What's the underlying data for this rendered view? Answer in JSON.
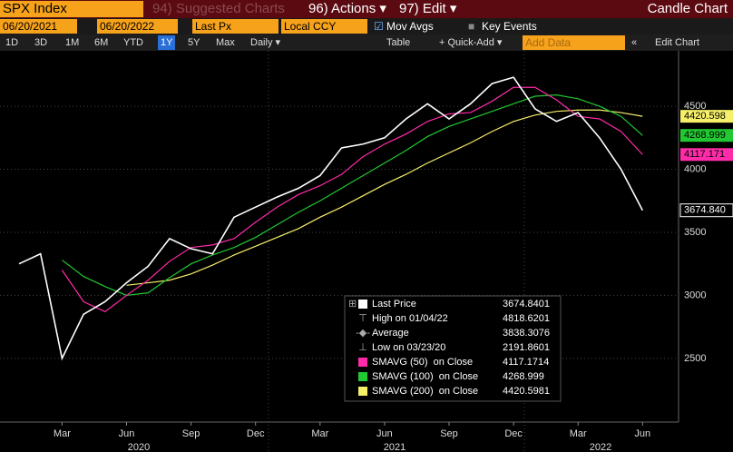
{
  "toolbar": {
    "security": "SPX Index",
    "suggested": "94) Suggested Charts",
    "actions": "96) Actions ▾",
    "edit": "97) Edit ▾",
    "chart_type": "Candle Chart"
  },
  "settings": {
    "start": "06/20/2021",
    "end": "06/20/2022",
    "field": "Last Px",
    "currency": "Local CCY",
    "mov_avgs": "Mov Avgs",
    "key_events": "Key Events"
  },
  "periods": [
    "1D",
    "3D",
    "1M",
    "6M",
    "YTD",
    "1Y",
    "5Y",
    "Max"
  ],
  "active_period": "1Y",
  "tools": {
    "frequency": "Daily ▾",
    "table": "Table",
    "quick_add": "+ Quick-Add ▾",
    "add_data": "Add Data",
    "edit_chart": "Edit Chart"
  },
  "chart_data": {
    "type": "line",
    "categories": [
      null,
      null,
      "Mar",
      null,
      null,
      "Jun",
      null,
      null,
      "Sep",
      null,
      null,
      "Dec",
      null,
      null,
      "Mar",
      null,
      null,
      "Jun",
      null,
      null,
      "Sep",
      null,
      null,
      "Dec",
      null,
      null,
      "Mar",
      null,
      null,
      "Jun"
    ],
    "years": [
      "2020",
      "2021",
      "2022"
    ],
    "series": [
      {
        "name": "Last Price",
        "color": "#ffffff",
        "legend_value": "3674.8401",
        "last_label": "3674.840",
        "values": [
          3250,
          3330,
          2500,
          2850,
          2950,
          3100,
          3230,
          3450,
          3370,
          3330,
          3620,
          3700,
          3780,
          3850,
          3950,
          4170,
          4200,
          4250,
          4400,
          4520,
          4400,
          4520,
          4680,
          4730,
          4480,
          4380,
          4450,
          4250,
          4000,
          3674.84
        ]
      },
      {
        "name": "SMAVG (50)  on Close",
        "color": "#ff2ba8",
        "legend_value": "4117.1714",
        "last_label": "4117.171",
        "values": [
          null,
          null,
          3200,
          2950,
          2870,
          3000,
          3120,
          3270,
          3380,
          3400,
          3450,
          3580,
          3700,
          3800,
          3870,
          3960,
          4100,
          4200,
          4280,
          4380,
          4440,
          4450,
          4540,
          4650,
          4650,
          4550,
          4420,
          4400,
          4300,
          4117.171
        ]
      },
      {
        "name": "SMAVG (100)  on Close",
        "color": "#22c832",
        "legend_value": "4268.999",
        "last_label": "4268.999",
        "values": [
          null,
          null,
          3280,
          3150,
          3070,
          3000,
          3020,
          3140,
          3250,
          3320,
          3380,
          3460,
          3560,
          3660,
          3750,
          3850,
          3950,
          4050,
          4150,
          4260,
          4340,
          4400,
          4460,
          4520,
          4580,
          4590,
          4560,
          4500,
          4420,
          4268.999
        ]
      },
      {
        "name": "SMAVG (200)  on Close",
        "color": "#f5ef6a",
        "legend_value": "4420.5981",
        "last_label": "4420.598",
        "values": [
          null,
          null,
          null,
          null,
          null,
          3080,
          3100,
          3120,
          3170,
          3240,
          3320,
          3390,
          3460,
          3530,
          3620,
          3700,
          3790,
          3880,
          3960,
          4050,
          4130,
          4210,
          4300,
          4380,
          4430,
          4460,
          4470,
          4470,
          4450,
          4420.598
        ]
      }
    ],
    "stats": [
      {
        "name": "High on 01/04/22",
        "value": "4818.6201"
      },
      {
        "name": "Average",
        "value": "3838.3076"
      },
      {
        "name": "Low on 03/23/20",
        "value": "2191.8601"
      }
    ],
    "ylim": [
      1995,
      4940
    ],
    "yticks": [
      2500,
      3000,
      3500,
      4000,
      4500
    ],
    "grid": true
  }
}
